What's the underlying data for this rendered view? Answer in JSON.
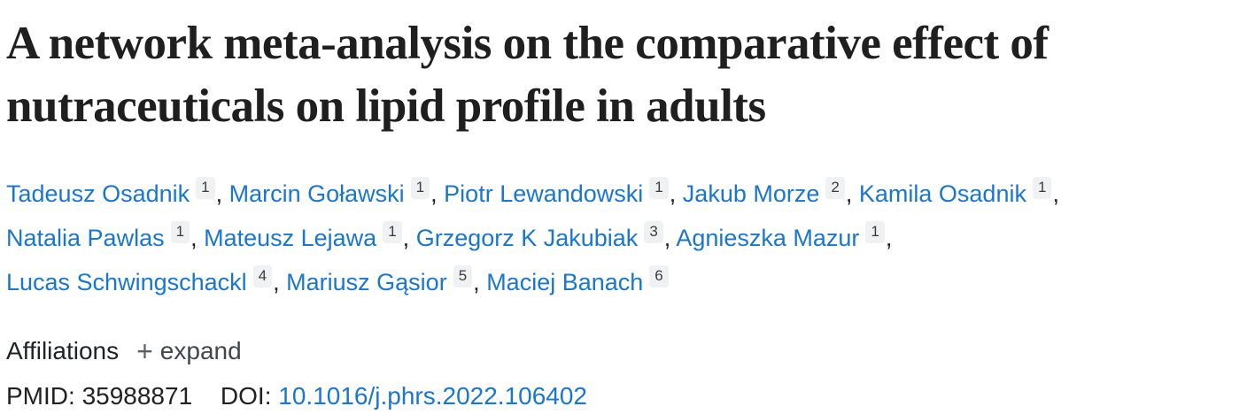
{
  "article": {
    "title": "A network meta-analysis on the comparative effect of nutraceuticals on lipid profile in adults"
  },
  "authors": [
    {
      "name": "Tadeusz Osadnik",
      "sup": "1"
    },
    {
      "name": "Marcin Goławski",
      "sup": "1"
    },
    {
      "name": "Piotr Lewandowski",
      "sup": "1"
    },
    {
      "name": "Jakub Morze",
      "sup": "2"
    },
    {
      "name": "Kamila Osadnik",
      "sup": "1"
    },
    {
      "name": "Natalia Pawlas",
      "sup": "1"
    },
    {
      "name": "Mateusz Lejawa",
      "sup": "1"
    },
    {
      "name": "Grzegorz K Jakubiak",
      "sup": "3"
    },
    {
      "name": "Agnieszka Mazur",
      "sup": "1"
    },
    {
      "name": "Lucas Schwingschackl",
      "sup": "4"
    },
    {
      "name": "Mariusz Gąsior",
      "sup": "5"
    },
    {
      "name": "Maciej Banach",
      "sup": "6"
    }
  ],
  "affiliations": {
    "label": "Affiliations",
    "plus_glyph": "+",
    "expand_label": "expand"
  },
  "identifiers": {
    "pmid_label": "PMID:",
    "pmid_value": "35988871",
    "doi_label": "DOI:",
    "doi_value": "10.1016/j.phrs.2022.106402"
  },
  "colors": {
    "link_blue": "#1976d2",
    "text_dark": "#212121",
    "muted_gray": "#3e4650",
    "badge_background": "#f0f1f2"
  }
}
